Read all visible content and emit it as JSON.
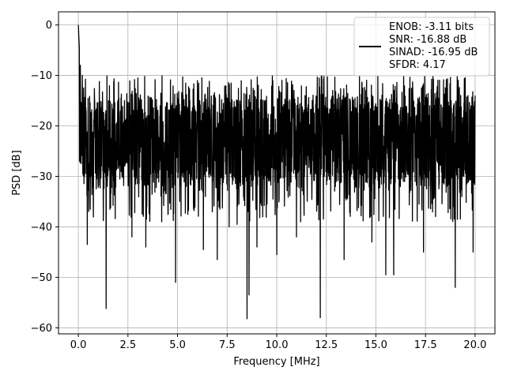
{
  "chart_data": {
    "type": "line",
    "title": "",
    "xlabel": "Frequency [MHz]",
    "ylabel": "PSD [dB]",
    "xlim": [
      -1.0,
      21.0
    ],
    "ylim": [
      -61.2,
      2.6
    ],
    "x_ticks": [
      0.0,
      2.5,
      5.0,
      7.5,
      10.0,
      12.5,
      15.0,
      17.5,
      20.0
    ],
    "x_tick_labels": [
      "0.0",
      "2.5",
      "5.0",
      "7.5",
      "10.0",
      "12.5",
      "15.0",
      "17.5",
      "20.0"
    ],
    "y_ticks": [
      0,
      -10,
      -20,
      -30,
      -40,
      -50,
      -60
    ],
    "y_tick_labels": [
      "0",
      "−10",
      "−20",
      "−30",
      "−40",
      "−50",
      "−60"
    ],
    "grid": true,
    "legend_position": "top-right",
    "legend": {
      "lines": [
        "ENOB: -3.11 bits",
        "SNR: -16.88 dB",
        "SINAD: -16.95 dB",
        "SFDR: 4.17"
      ]
    },
    "series": [
      {
        "color": "#000000",
        "x_range": [
          0.0,
          20.0
        ],
        "peak": {
          "x": 0.0,
          "y": 0.0
        },
        "noise_floor_mean": -22,
        "noise_floor_band": [
          -33,
          -13
        ],
        "dips": [
          {
            "x": 0.45,
            "y": -43.5
          },
          {
            "x": 0.6,
            "y": -36.5
          },
          {
            "x": 1.4,
            "y": -56.2
          },
          {
            "x": 2.7,
            "y": -42.0
          },
          {
            "x": 3.0,
            "y": -39.5
          },
          {
            "x": 3.4,
            "y": -44.0
          },
          {
            "x": 4.2,
            "y": -39.0
          },
          {
            "x": 4.9,
            "y": -51.0
          },
          {
            "x": 6.3,
            "y": -44.5
          },
          {
            "x": 7.0,
            "y": -46.5
          },
          {
            "x": 7.6,
            "y": -40.0
          },
          {
            "x": 8.0,
            "y": -39.5
          },
          {
            "x": 8.5,
            "y": -58.2
          },
          {
            "x": 8.6,
            "y": -53.5
          },
          {
            "x": 9.0,
            "y": -44.0
          },
          {
            "x": 10.0,
            "y": -45.5
          },
          {
            "x": 11.0,
            "y": -42.0
          },
          {
            "x": 12.2,
            "y": -58.0
          },
          {
            "x": 13.4,
            "y": -46.5
          },
          {
            "x": 14.8,
            "y": -43.0
          },
          {
            "x": 15.5,
            "y": -49.5
          },
          {
            "x": 15.9,
            "y": -49.5
          },
          {
            "x": 17.4,
            "y": -45.0
          },
          {
            "x": 19.0,
            "y": -52.0
          },
          {
            "x": 19.9,
            "y": -45.0
          }
        ],
        "spikes": [
          {
            "x": 0.05,
            "y": -4.5
          },
          {
            "x": 0.1,
            "y": -8.0
          },
          {
            "x": 0.2,
            "y": -10.0
          },
          {
            "x": 3.0,
            "y": -10.5
          },
          {
            "x": 6.0,
            "y": -11.0
          },
          {
            "x": 7.7,
            "y": -11.5
          },
          {
            "x": 9.8,
            "y": -11.0
          },
          {
            "x": 14.5,
            "y": -13.0
          },
          {
            "x": 17.3,
            "y": -12.5
          },
          {
            "x": 20.0,
            "y": -14.0
          }
        ]
      }
    ]
  }
}
